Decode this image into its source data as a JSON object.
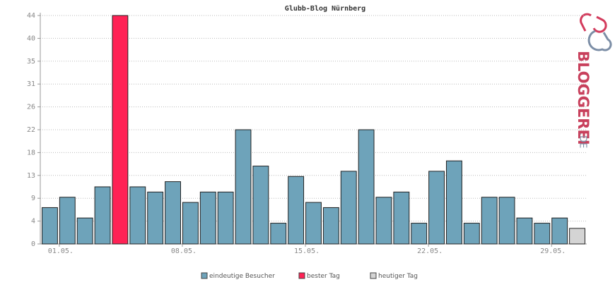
{
  "chart_data": {
    "type": "bar",
    "title": "Glubb-Blog Nürnberg",
    "categories": [
      "01.05.",
      null,
      null,
      null,
      null,
      null,
      null,
      "08.05.",
      null,
      null,
      null,
      null,
      null,
      null,
      "15.05.",
      null,
      null,
      null,
      null,
      null,
      null,
      "22.05.",
      null,
      null,
      null,
      null,
      null,
      null,
      "29.05.",
      null,
      null
    ],
    "series": [
      {
        "name": "eindeutige Besucher",
        "color": "#6ea3ba",
        "values": [
          7,
          9,
          5,
          11,
          null,
          11,
          10,
          12,
          8,
          10,
          10,
          22,
          15,
          4,
          13,
          8,
          7,
          14,
          22,
          9,
          10,
          4,
          14,
          16,
          4,
          9,
          9,
          5,
          4,
          5,
          null
        ]
      },
      {
        "name": "bester Tag",
        "color": "#ff2255",
        "values": [
          null,
          null,
          null,
          null,
          44,
          null,
          null,
          null,
          null,
          null,
          null,
          null,
          null,
          null,
          null,
          null,
          null,
          null,
          null,
          null,
          null,
          null,
          null,
          null,
          null,
          null,
          null,
          null,
          null,
          null,
          null
        ]
      },
      {
        "name": "heutiger Tag",
        "color": "#d4d4d4",
        "values": [
          null,
          null,
          null,
          null,
          null,
          null,
          null,
          null,
          null,
          null,
          null,
          null,
          null,
          null,
          null,
          null,
          null,
          null,
          null,
          null,
          null,
          null,
          null,
          null,
          null,
          null,
          null,
          null,
          null,
          null,
          3
        ]
      }
    ],
    "ylim": [
      0,
      44
    ],
    "yticks": [
      0,
      {
        "value": 4.4,
        "label": "4"
      },
      {
        "value": 8.8,
        "label": "9"
      },
      {
        "value": 13.2,
        "label": "13"
      },
      {
        "value": 17.6,
        "label": "18"
      },
      22,
      {
        "value": 26.4,
        "label": "26"
      },
      {
        "value": 30.8,
        "label": "31"
      },
      {
        "value": 35.2,
        "label": "35"
      },
      {
        "value": 39.6,
        "label": "40"
      },
      44
    ],
    "grid": true,
    "logo": {
      "main": "BLOGGEREI",
      "suffix": ".DE"
    }
  }
}
